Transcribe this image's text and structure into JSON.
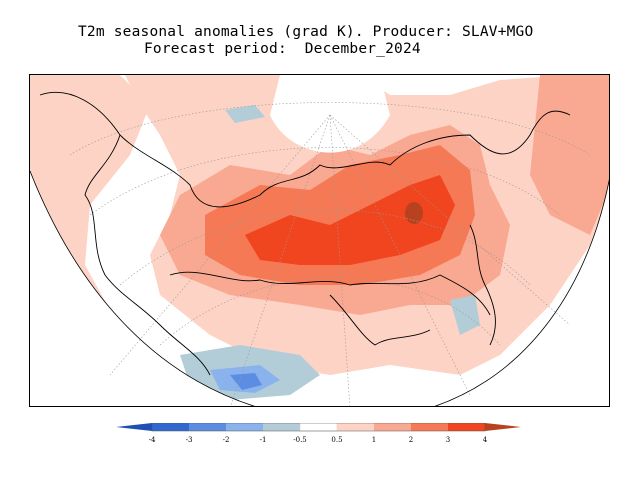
{
  "title": {
    "line1": "T2m seasonal anomalies (grad K). Producer: SLAV+MGO",
    "line2": "Forecast period:  December_2024"
  },
  "colorbar": {
    "ticks": [
      "-4",
      "-3",
      "-2",
      "-1",
      "-0.5",
      "0.5",
      "1",
      "2",
      "3",
      "4"
    ],
    "colors": {
      "lt_m4": "#1e4fb4",
      "m4_m3": "#2f69cf",
      "m3_m2": "#5b8ee3",
      "m2_m1": "#8ab2ec",
      "m1_m05": "#b3cdd8",
      "neutral": "#ffffff",
      "p05_1": "#fdd3c5",
      "p1_2": "#f9a891",
      "p2_3": "#f67955",
      "p3_4": "#f0451e",
      "gt_p4": "#b8421f"
    }
  },
  "map": {
    "projection": "conic (Lambert), Eurasia",
    "dominant_anomaly": "warm anomalies over Siberia and northern Asia, cold anomalies over the Middle East / Black Sea area"
  }
}
